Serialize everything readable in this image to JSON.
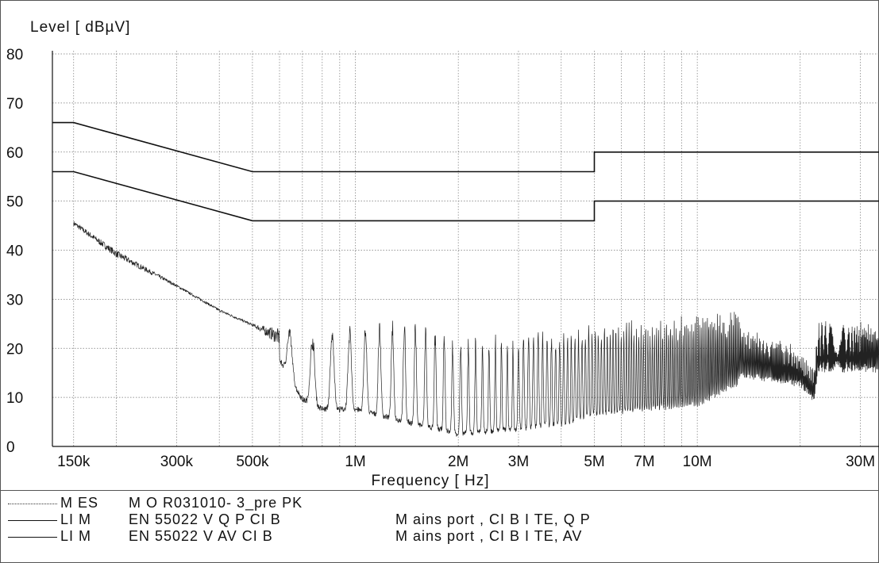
{
  "chart_data": {
    "type": "line",
    "ylabel": "Level [ dBµV]",
    "xlabel": "Frequency [ Hz]",
    "xscale": "log",
    "xlim": [
      130000,
      34000000
    ],
    "ylim": [
      0,
      80
    ],
    "grid": true,
    "y_ticks": [
      "0",
      "10",
      "20",
      "30",
      "40",
      "50",
      "60",
      "70",
      "80"
    ],
    "x_ticks": [
      {
        "value": 150000,
        "label": "150k"
      },
      {
        "value": 300000,
        "label": "300k"
      },
      {
        "value": 500000,
        "label": "500k"
      },
      {
        "value": 1000000,
        "label": "1M"
      },
      {
        "value": 2000000,
        "label": "2M"
      },
      {
        "value": 3000000,
        "label": "3M"
      },
      {
        "value": 5000000,
        "label": "5M"
      },
      {
        "value": 7000000,
        "label": "7M"
      },
      {
        "value": 10000000,
        "label": "10M"
      },
      {
        "value": 30000000,
        "label": "30M"
      }
    ],
    "x_grid": [
      150000,
      200000,
      300000,
      400000,
      500000,
      600000,
      700000,
      800000,
      900000,
      1000000,
      2000000,
      3000000,
      4000000,
      5000000,
      6000000,
      7000000,
      8000000,
      9000000,
      10000000,
      20000000,
      30000000
    ],
    "limit_series": [
      {
        "id": "qp",
        "x": [
          130000,
          150000,
          500000,
          5000000,
          5000000,
          34000000
        ],
        "y": [
          66.0,
          66.0,
          56.0,
          56.0,
          60.0,
          60.0
        ]
      },
      {
        "id": "av",
        "x": [
          130000,
          150000,
          500000,
          5000000,
          5000000,
          34000000
        ],
        "y": [
          56.0,
          56.0,
          46.0,
          46.0,
          50.0,
          50.0
        ]
      }
    ],
    "measurement_envelope": {
      "x": [
        150000,
        200000,
        300000,
        400000,
        500000,
        600000,
        700000,
        800000,
        1000000,
        1500000,
        2000000,
        3000000,
        4000000,
        5000000,
        7000000,
        10000000,
        13000000,
        13500000,
        20000000,
        22000000,
        22500000,
        34000000
      ],
      "y_peak": [
        46,
        40,
        33,
        28,
        25,
        24,
        22,
        23,
        25,
        25,
        22,
        23,
        23,
        25,
        25,
        27,
        27,
        24,
        19,
        16,
        25,
        25
      ],
      "y_floor": [
        44,
        37,
        32,
        27,
        24,
        17,
        9,
        7,
        7,
        4,
        2,
        3,
        4,
        6,
        7,
        8,
        12,
        14,
        12,
        9,
        15,
        15
      ]
    }
  },
  "legend": [
    {
      "kind": "M ES",
      "name": "M O R031010- 3_pre PK",
      "desc": ""
    },
    {
      "kind": "LI M",
      "name": "EN 55022 V Q P CI B",
      "desc": "M ains port , CI B I TE, Q P"
    },
    {
      "kind": "LI M",
      "name": "EN 55022 V AV CI B",
      "desc": "M ains port , CI B I TE, AV"
    }
  ]
}
